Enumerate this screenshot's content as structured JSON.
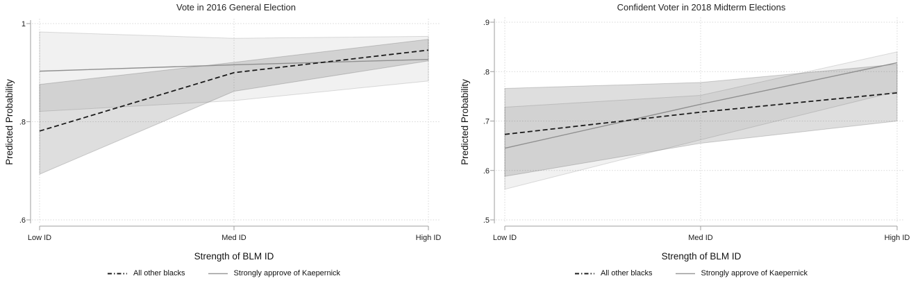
{
  "page": {
    "background": "#ffffff"
  },
  "chart_data": [
    {
      "type": "line",
      "title": "Vote in 2016 General Election",
      "xlabel": "Strength of BLM ID",
      "ylabel": "Predicted Probability",
      "categories": [
        "Low ID",
        "Med ID",
        "High ID"
      ],
      "ylim": [
        0.6,
        1.0
      ],
      "yticks": [
        1.0,
        0.8,
        0.6
      ],
      "ytick_labels": [
        "1",
        ".8",
        ".6"
      ],
      "grid": "dotted gridlines at x categories and y ticks",
      "legend_position": "bottom-center",
      "series": [
        {
          "name": "All other blacks",
          "line": "dashed",
          "color": "#1a1a1a",
          "band_color": "rgba(50,50,50,0.16)",
          "values": [
            0.781,
            0.9,
            0.946
          ],
          "ci_upper": [
            0.876,
            0.921,
            0.968
          ],
          "ci_lower": [
            0.693,
            0.862,
            0.924
          ]
        },
        {
          "name": "Strongly approve of Kaepernick",
          "line": "solid",
          "color": "#8f8f8f",
          "band_color": "rgba(50,50,50,0.065)",
          "values": [
            0.903,
            0.916,
            0.927
          ],
          "ci_upper": [
            0.983,
            0.97,
            0.974
          ],
          "ci_lower": [
            0.821,
            0.843,
            0.883
          ]
        }
      ]
    },
    {
      "type": "line",
      "title": "Confident Voter in 2018 Midterm Elections",
      "xlabel": "Strength of BLM ID",
      "ylabel": "Predicted Probability",
      "categories": [
        "Low ID",
        "Med ID",
        "High ID"
      ],
      "ylim": [
        0.5,
        0.9
      ],
      "yticks": [
        0.9,
        0.8,
        0.7,
        0.6,
        0.5
      ],
      "ytick_labels": [
        ".9",
        ".8",
        ".7",
        ".6",
        ".5"
      ],
      "grid": "dotted gridlines at x categories and y ticks",
      "legend_position": "bottom-center",
      "series": [
        {
          "name": "All other blacks",
          "line": "dashed",
          "color": "#1a1a1a",
          "band_color": "rgba(50,50,50,0.16)",
          "values": [
            0.673,
            0.718,
            0.757
          ],
          "ci_upper": [
            0.766,
            0.778,
            0.815
          ],
          "ci_lower": [
            0.588,
            0.655,
            0.7
          ]
        },
        {
          "name": "Strongly approve of Kaepernick",
          "line": "solid",
          "color": "#8f8f8f",
          "band_color": "rgba(50,50,50,0.065)",
          "values": [
            0.645,
            0.734,
            0.818
          ],
          "ci_upper": [
            0.728,
            0.752,
            0.84
          ],
          "ci_lower": [
            0.562,
            0.662,
            0.76
          ]
        }
      ]
    }
  ]
}
